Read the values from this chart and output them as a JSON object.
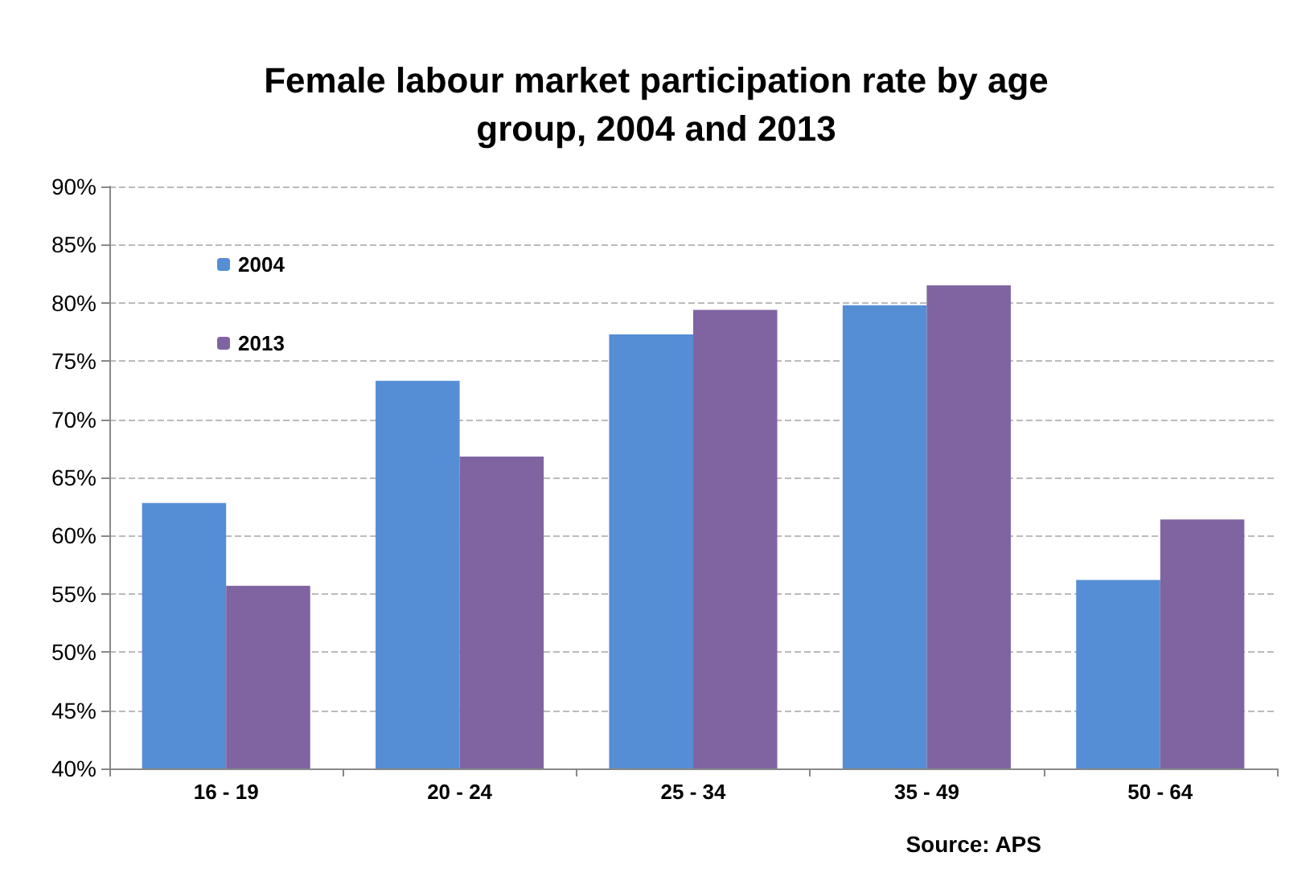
{
  "chart_data": {
    "type": "bar",
    "title": "Female labour market participation rate by age\ngroup, 2004 and 2013",
    "categories": [
      "16 - 19",
      "20 - 24",
      "25 - 34",
      "35 - 49",
      "50 - 64"
    ],
    "series": [
      {
        "name": "2004",
        "color": "#558ed5",
        "values": [
          62.8,
          73.3,
          77.3,
          79.8,
          56.2
        ]
      },
      {
        "name": "2013",
        "color": "#8064a2",
        "values": [
          55.7,
          66.8,
          79.4,
          81.5,
          61.4
        ]
      }
    ],
    "ylim": [
      40,
      90
    ],
    "yticks": [
      {
        "value": 40,
        "label": "40%"
      },
      {
        "value": 45,
        "label": "45%"
      },
      {
        "value": 50,
        "label": "50%"
      },
      {
        "value": 55,
        "label": "55%"
      },
      {
        "value": 60,
        "label": "60%"
      },
      {
        "value": 65,
        "label": "65%"
      },
      {
        "value": 70,
        "label": "70%"
      },
      {
        "value": 75,
        "label": "75%"
      },
      {
        "value": 80,
        "label": "80%"
      },
      {
        "value": 85,
        "label": "85%"
      },
      {
        "value": 90,
        "label": "90%"
      }
    ],
    "grid": "y",
    "legend": "top left",
    "annotations": [
      "Source: APS"
    ]
  }
}
